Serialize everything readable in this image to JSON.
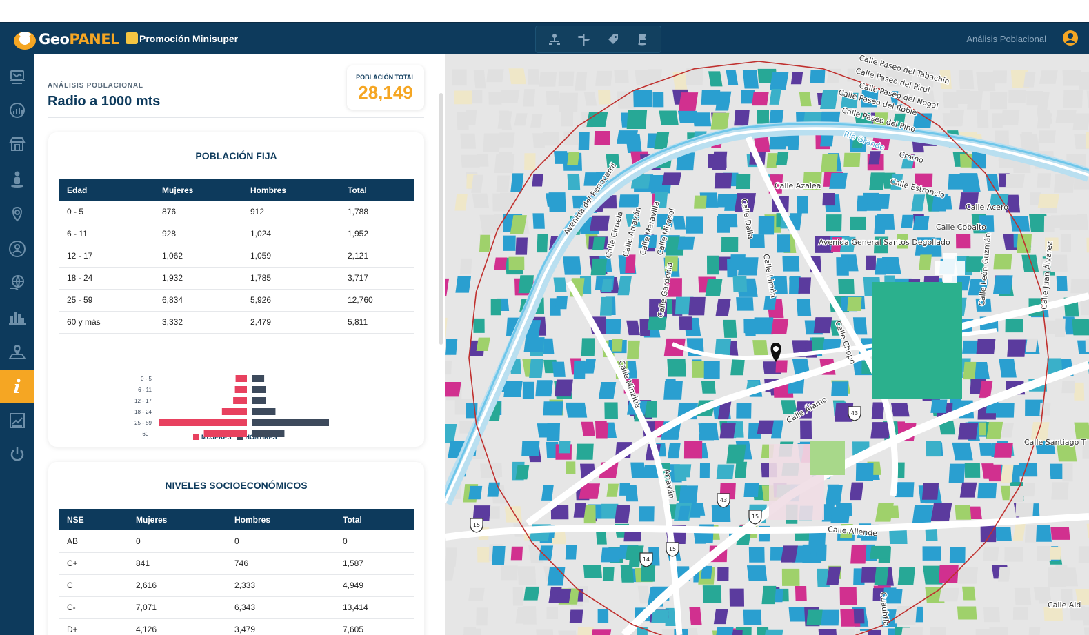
{
  "app": {
    "logo_geo": "Geo",
    "logo_panel": "PANEL",
    "project_name": "Promoción Minisuper",
    "header_right": "Análisis Poblacional"
  },
  "toolbar": {
    "icons": [
      "network-icon",
      "crossroads-icon",
      "tag-icon",
      "flag-icon"
    ]
  },
  "sidebar": {
    "items": [
      {
        "icon": "layers-icon",
        "active": false
      },
      {
        "icon": "chart-globe-icon",
        "active": false
      },
      {
        "icon": "store-icon",
        "active": false
      },
      {
        "icon": "person-icon",
        "active": false
      },
      {
        "icon": "location-pin-icon",
        "active": false
      },
      {
        "icon": "people-icon",
        "active": false
      },
      {
        "icon": "globe-hand-icon",
        "active": false
      },
      {
        "icon": "city-icon",
        "active": false
      },
      {
        "icon": "map-pin-icon",
        "active": false
      },
      {
        "icon": "info-icon",
        "active": true
      },
      {
        "icon": "trend-chart-icon",
        "active": false
      },
      {
        "icon": "power-icon",
        "active": false
      }
    ]
  },
  "panel": {
    "eyebrow": "ANÁLISIS POBLACIONAL",
    "title": "Radio a 1000 mts",
    "population_label": "POBLACIÓN TOTAL",
    "population_value": "28,149"
  },
  "poblacion_fija": {
    "title": "POBLACIÓN FIJA",
    "headers": [
      "Edad",
      "Mujeres",
      "Hombres",
      "Total"
    ],
    "rows": [
      [
        "0 - 5",
        "876",
        "912",
        "1,788"
      ],
      [
        "6 - 11",
        "928",
        "1,024",
        "1,952"
      ],
      [
        "12 - 17",
        "1,062",
        "1,059",
        "2,121"
      ],
      [
        "18 - 24",
        "1,932",
        "1,785",
        "3,717"
      ],
      [
        "25 - 59",
        "6,834",
        "5,926",
        "12,760"
      ],
      [
        "60 y más",
        "3,332",
        "2,479",
        "5,811"
      ]
    ]
  },
  "chart_data": {
    "type": "bar",
    "categories": [
      "0 - 5",
      "6 - 11",
      "12 - 17",
      "18 - 24",
      "25 - 59",
      "60+"
    ],
    "series": [
      {
        "name": "MUJERES",
        "values": [
          876,
          928,
          1062,
          1932,
          6834,
          3332
        ],
        "color": "#e8415f"
      },
      {
        "name": "HOMBRES",
        "values": [
          912,
          1024,
          1059,
          1785,
          5926,
          2479
        ],
        "color": "#3d4a5c"
      }
    ],
    "orientation": "horizontal-pyramid",
    "legend": "top"
  },
  "nse": {
    "title": "NIVELES SOCIOECONÓMICOS",
    "headers": [
      "NSE",
      "Mujeres",
      "Hombres",
      "Total"
    ],
    "rows": [
      [
        "AB",
        "0",
        "0",
        "0"
      ],
      [
        "C+",
        "841",
        "746",
        "1,587"
      ],
      [
        "C",
        "2,616",
        "2,333",
        "4,949"
      ],
      [
        "C-",
        "7,071",
        "6,343",
        "13,414"
      ],
      [
        "D+",
        "4,126",
        "3,479",
        "7,605"
      ]
    ]
  },
  "map": {
    "streets": [
      "Calle Paseo del Tabachín",
      "Calle Paseo del Pirul",
      "Calle Paseo del Nogal",
      "Calle Paseo del Roble",
      "Calle Paseo del Pino",
      "Río Grande",
      "Cromo",
      "Calle Estroncio",
      "Calle Acero",
      "Calle Cobalto",
      "Calle Azalea",
      "Avenida del Ferrocarril",
      "Calle Ciruela",
      "Calle Arrayán",
      "Calle Maravilla",
      "Calle Mirasol",
      "Calle Dalia",
      "Avenida General Santos Degollado",
      "Calle Limón",
      "Calle Gardenia",
      "Calle Chopo",
      "Calle Minzitia",
      "Calle Álamo",
      "Calle León Guzmán",
      "Calle Juan Álvarez",
      "Calle Santiago T",
      "Arrayán",
      "Calle Allende",
      "Cuauhtla",
      "Calle Ald"
    ],
    "shields": [
      "15",
      "43",
      "43",
      "15",
      "15",
      "14"
    ],
    "colors": {
      "radius": "#c0302e",
      "pin": "#111111"
    }
  },
  "colors": {
    "navy": "#0d3a5c",
    "accent": "#f5a623",
    "women": "#e8415f",
    "men": "#3d4a5c"
  }
}
